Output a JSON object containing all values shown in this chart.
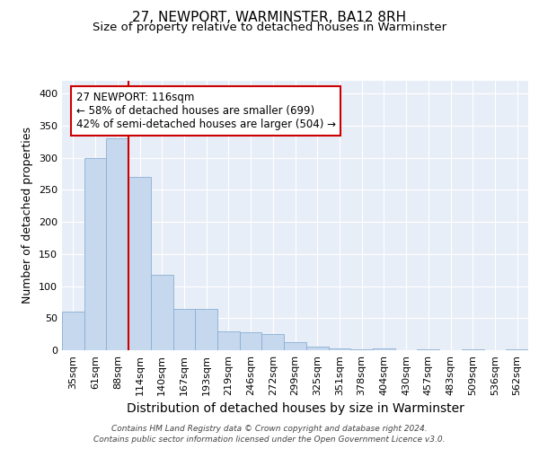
{
  "title": "27, NEWPORT, WARMINSTER, BA12 8RH",
  "subtitle": "Size of property relative to detached houses in Warminster",
  "xlabel": "Distribution of detached houses by size in Warminster",
  "ylabel": "Number of detached properties",
  "categories": [
    "35sqm",
    "61sqm",
    "88sqm",
    "114sqm",
    "140sqm",
    "167sqm",
    "193sqm",
    "219sqm",
    "246sqm",
    "272sqm",
    "299sqm",
    "325sqm",
    "351sqm",
    "378sqm",
    "404sqm",
    "430sqm",
    "457sqm",
    "483sqm",
    "509sqm",
    "536sqm",
    "562sqm"
  ],
  "values": [
    60,
    300,
    330,
    270,
    118,
    65,
    65,
    30,
    28,
    25,
    13,
    5,
    3,
    2,
    3,
    0,
    2,
    0,
    2,
    0,
    2
  ],
  "bar_color": "#c5d8ee",
  "bar_edge_color": "#8aafd4",
  "background_color": "#ffffff",
  "plot_bg_color": "#e8eef7",
  "grid_color": "#ffffff",
  "red_line_x": 3.0,
  "red_line_color": "#cc0000",
  "annotation_text": "27 NEWPORT: 116sqm\n← 58% of detached houses are smaller (699)\n42% of semi-detached houses are larger (504) →",
  "annotation_box_color": "#ffffff",
  "annotation_box_edge": "#cc0000",
  "ylim": [
    0,
    420
  ],
  "yticks": [
    0,
    50,
    100,
    150,
    200,
    250,
    300,
    350,
    400
  ],
  "footer_text": "Contains HM Land Registry data © Crown copyright and database right 2024.\nContains public sector information licensed under the Open Government Licence v3.0.",
  "title_fontsize": 11,
  "subtitle_fontsize": 9.5,
  "ylabel_fontsize": 9,
  "xlabel_fontsize": 10,
  "tick_fontsize": 8,
  "annotation_fontsize": 8.5,
  "footer_fontsize": 6.5
}
